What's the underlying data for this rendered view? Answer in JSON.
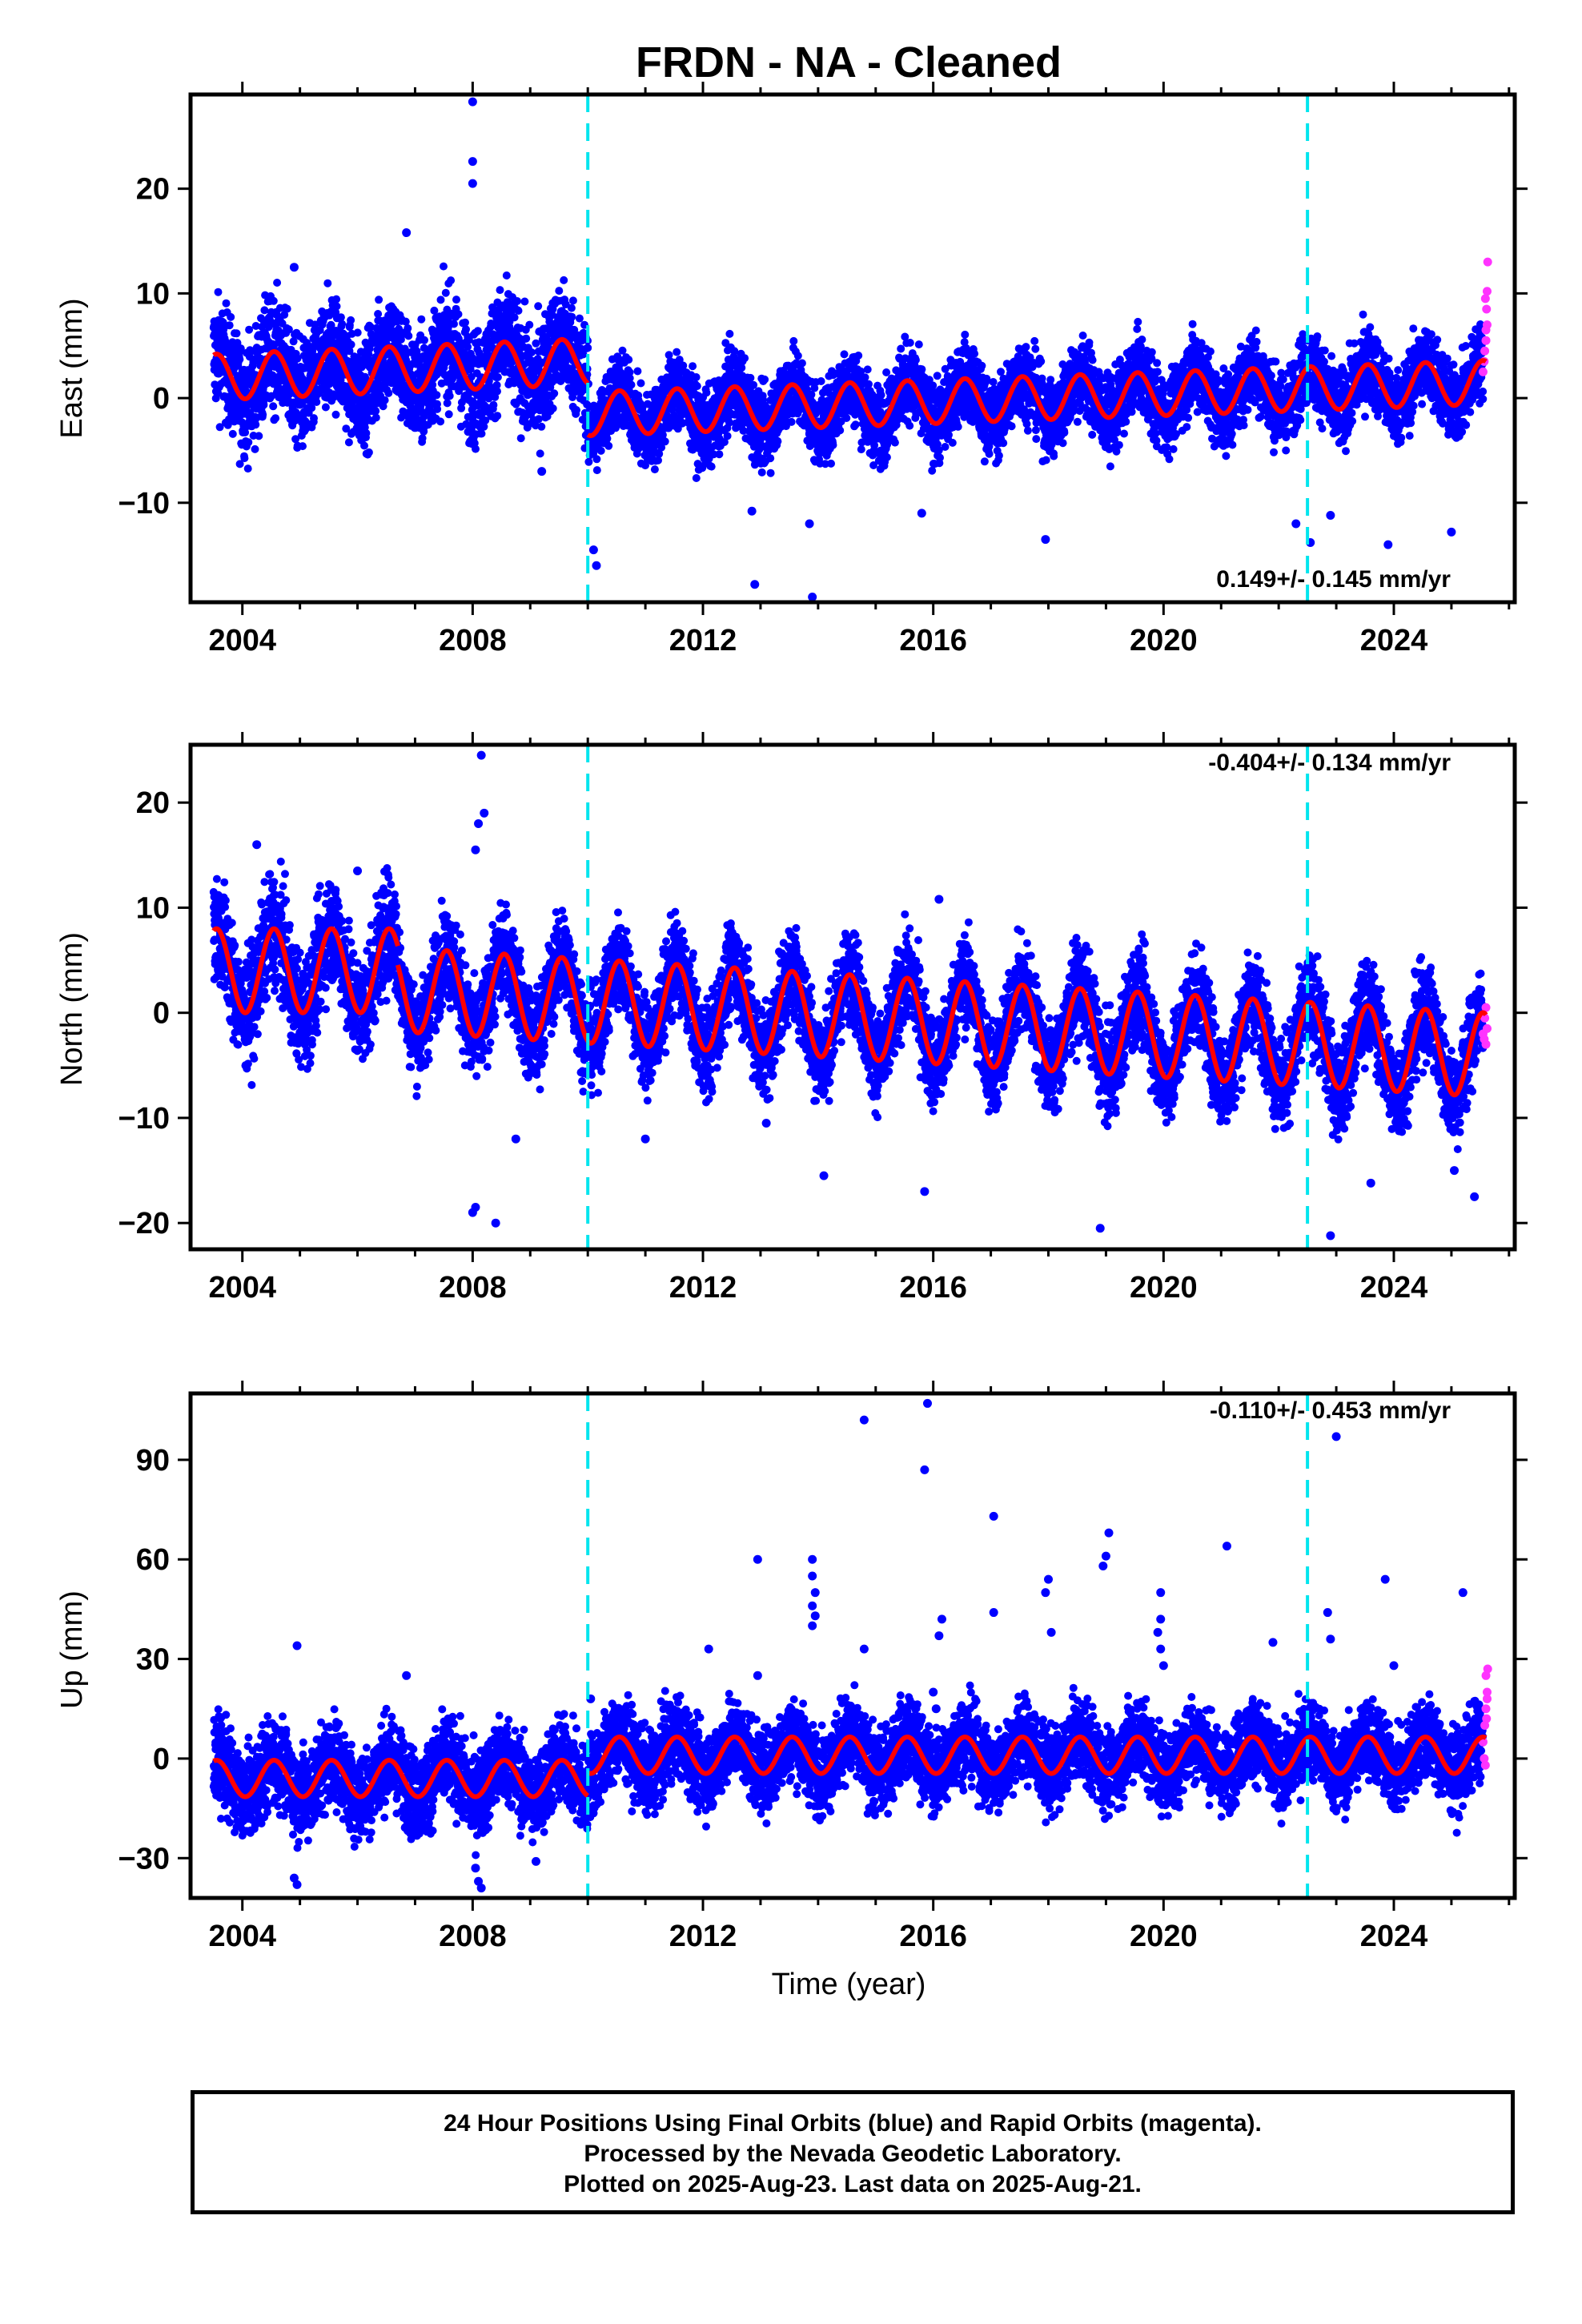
{
  "title": "FRDN  - NA - Cleaned",
  "xlabel": "Time (year)",
  "footer": {
    "line1": "24 Hour Positions Using Final Orbits (blue) and Rapid Orbits (magenta).",
    "line2": "Processed by the Nevada Geodetic Laboratory.",
    "line3": "Plotted on 2025-Aug-23. Last data on 2025-Aug-21."
  },
  "colors": {
    "final_orbits": "#0000ff",
    "rapid_orbits": "#ff33ff",
    "model_fit": "#ff0000",
    "offset_lines": "#00e5ee"
  },
  "chart_data": [
    {
      "type": "scatter",
      "ylabel": "East (mm)",
      "rate_text": "0.149+/- 0.145 mm/yr",
      "xlim": [
        2003.1,
        2026.1
      ],
      "ylim": [
        -19.5,
        29
      ],
      "xticks": [
        2004,
        2008,
        2012,
        2016,
        2020,
        2024
      ],
      "yticks": [
        -10,
        0,
        10,
        20
      ],
      "offset_lines": [
        2010.0,
        2022.5
      ],
      "grid": false,
      "fit_segments": [
        {
          "x0": 2003.5,
          "x1": 2010.0,
          "y0": 2.0,
          "y1": 3.5,
          "amp": 2.2,
          "spread": 2.6
        },
        {
          "x0": 2010.0,
          "x1": 2025.6,
          "y0": -1.5,
          "y1": 1.5,
          "amp": 2.1,
          "spread": 1.8
        }
      ],
      "outliers": [
        [
          2008.0,
          28.3
        ],
        [
          2008.0,
          22.6
        ],
        [
          2008.0,
          20.5
        ],
        [
          2006.85,
          15.8
        ],
        [
          2004.9,
          12.5
        ],
        [
          2010.1,
          -14.5
        ],
        [
          2010.15,
          -16.0
        ],
        [
          2013.9,
          -19.0
        ],
        [
          2012.9,
          -17.8
        ],
        [
          2013.85,
          -12.0
        ],
        [
          2015.8,
          -11.0
        ],
        [
          2017.95,
          -13.5
        ],
        [
          2012.85,
          -10.8
        ],
        [
          2022.3,
          -12.0
        ],
        [
          2022.55,
          -13.8
        ],
        [
          2023.9,
          -14.0
        ],
        [
          2025.0,
          -12.8
        ],
        [
          2022.9,
          -11.2
        ],
        [
          2009.2,
          -7.0
        ]
      ],
      "rapid_points": [
        [
          2025.55,
          2.5
        ],
        [
          2025.58,
          4.5
        ],
        [
          2025.6,
          6.5
        ],
        [
          2025.61,
          8.5
        ],
        [
          2025.62,
          10.2
        ],
        [
          2025.63,
          13.0
        ],
        [
          2025.57,
          3.5
        ],
        [
          2025.6,
          5.5
        ],
        [
          2025.62,
          7.0
        ],
        [
          2025.59,
          9.5
        ]
      ]
    },
    {
      "type": "scatter",
      "ylabel": "North (mm)",
      "rate_text": "-0.404+/- 0.134 mm/yr",
      "xlim": [
        2003.1,
        2026.1
      ],
      "ylim": [
        -22.5,
        25.5
      ],
      "xticks": [
        2004,
        2008,
        2012,
        2016,
        2020,
        2024
      ],
      "yticks": [
        -20,
        -10,
        0,
        10,
        20
      ],
      "offset_lines": [
        2010.0,
        2022.5
      ],
      "grid": false,
      "fit_segments": [
        {
          "x0": 2003.5,
          "x1": 2006.7,
          "y0": 4.0,
          "y1": 4.0,
          "amp": 4.0,
          "spread": 2.6
        },
        {
          "x0": 2006.7,
          "x1": 2025.6,
          "y0": 2.2,
          "y1": -4.0,
          "amp": 4.0,
          "spread": 2.2
        }
      ],
      "outliers": [
        [
          2008.15,
          24.5
        ],
        [
          2008.2,
          19.0
        ],
        [
          2008.1,
          18.0
        ],
        [
          2008.05,
          15.5
        ],
        [
          2004.25,
          16.0
        ],
        [
          2008.0,
          -19.0
        ],
        [
          2008.05,
          -18.5
        ],
        [
          2008.4,
          -20.0
        ],
        [
          2008.75,
          -12.0
        ],
        [
          2011.0,
          -12.0
        ],
        [
          2013.1,
          -10.5
        ],
        [
          2014.1,
          -15.5
        ],
        [
          2015.85,
          -17.0
        ],
        [
          2018.9,
          -20.5
        ],
        [
          2022.9,
          -21.2
        ],
        [
          2023.6,
          -16.2
        ],
        [
          2025.05,
          -15.0
        ],
        [
          2025.4,
          -17.5
        ],
        [
          2016.1,
          10.8
        ],
        [
          2006.0,
          13.5
        ]
      ],
      "rapid_points": [
        [
          2025.55,
          -2.0
        ],
        [
          2025.58,
          -0.5
        ],
        [
          2025.6,
          0.5
        ],
        [
          2025.62,
          -1.5
        ],
        [
          2025.6,
          -3.0
        ],
        [
          2025.57,
          -2.5
        ]
      ]
    },
    {
      "type": "scatter",
      "ylabel": "Up (mm)",
      "rate_text": "-0.110+/- 0.453 mm/yr",
      "xlim": [
        2003.1,
        2026.1
      ],
      "ylim": [
        -42,
        110
      ],
      "xticks": [
        2004,
        2008,
        2012,
        2016,
        2020,
        2024
      ],
      "yticks": [
        -30,
        0,
        30,
        60,
        90
      ],
      "offset_lines": [
        2010.0,
        2022.5
      ],
      "grid": false,
      "fit_segments": [
        {
          "x0": 2003.5,
          "x1": 2010.0,
          "y0": -6.0,
          "y1": -6.0,
          "amp": 5.5,
          "spread": 6.5
        },
        {
          "x0": 2010.0,
          "x1": 2025.6,
          "y0": 1.0,
          "y1": 1.0,
          "amp": 5.5,
          "spread": 6.0
        }
      ],
      "outliers": [
        [
          2014.8,
          102
        ],
        [
          2015.9,
          107
        ],
        [
          2015.85,
          87
        ],
        [
          2017.05,
          73
        ],
        [
          2019.05,
          68
        ],
        [
          2019.0,
          61
        ],
        [
          2018.95,
          58
        ],
        [
          2021.1,
          64
        ],
        [
          2023.0,
          97
        ],
        [
          2023.85,
          54
        ],
        [
          2012.95,
          60
        ],
        [
          2013.9,
          60
        ],
        [
          2013.9,
          55
        ],
        [
          2013.95,
          50
        ],
        [
          2013.9,
          46
        ],
        [
          2013.95,
          43
        ],
        [
          2013.9,
          40
        ],
        [
          2018.0,
          54
        ],
        [
          2017.95,
          50
        ],
        [
          2018.05,
          38
        ],
        [
          2019.95,
          50
        ],
        [
          2019.95,
          42
        ],
        [
          2019.9,
          38
        ],
        [
          2019.95,
          33
        ],
        [
          2017.05,
          44
        ],
        [
          2016.1,
          37
        ],
        [
          2016.15,
          42
        ],
        [
          2014.8,
          33
        ],
        [
          2012.1,
          33
        ],
        [
          2022.85,
          44
        ],
        [
          2022.9,
          36
        ],
        [
          2025.2,
          50
        ],
        [
          2004.95,
          34
        ],
        [
          2004.9,
          -36
        ],
        [
          2004.95,
          -38
        ],
        [
          2008.05,
          -33
        ],
        [
          2008.1,
          -37
        ],
        [
          2008.15,
          -39
        ],
        [
          2009.1,
          -31
        ],
        [
          2006.85,
          25
        ],
        [
          2010.05,
          18
        ],
        [
          2012.95,
          25
        ],
        [
          2016.0,
          20
        ],
        [
          2016.05,
          15
        ],
        [
          2020.0,
          28
        ],
        [
          2024.0,
          28
        ],
        [
          2021.9,
          35
        ]
      ],
      "rapid_points": [
        [
          2025.55,
          5
        ],
        [
          2025.58,
          10
        ],
        [
          2025.6,
          15
        ],
        [
          2025.62,
          20
        ],
        [
          2025.63,
          27
        ],
        [
          2025.6,
          25
        ],
        [
          2025.57,
          0
        ],
        [
          2025.59,
          -2
        ],
        [
          2025.61,
          12
        ],
        [
          2025.62,
          18
        ]
      ]
    }
  ]
}
